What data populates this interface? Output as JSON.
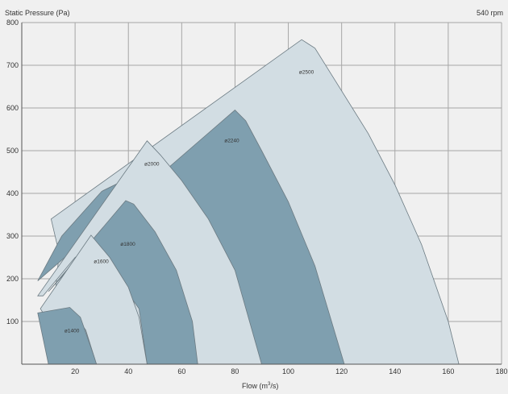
{
  "header": {
    "ylabel": "Static Pressure (Pa)",
    "speed": "540 rpm"
  },
  "chart_data": {
    "type": "area",
    "xlabel_text": "Flow (m",
    "xlabel_sup": "3",
    "xlabel_tail": "/s)",
    "xlim": [
      0,
      180
    ],
    "ylim": [
      0,
      800
    ],
    "xticks": [
      "20",
      "40",
      "60",
      "80",
      "100",
      "120",
      "140",
      "160",
      "180"
    ],
    "yticks": [
      "100",
      "200",
      "300",
      "400",
      "500",
      "600",
      "700",
      "800"
    ],
    "grid": true,
    "colors": {
      "light": "#d2dde3",
      "dark": "#7f9faf",
      "edge": "#6b7a82",
      "grid": "#a6a6a6"
    },
    "series": [
      {
        "name": "ø2500",
        "shade": "light",
        "label_at": [
          104,
          680
        ],
        "points": [
          [
            11,
            340
          ],
          [
            105,
            760
          ],
          [
            110,
            740
          ],
          [
            120,
            640
          ],
          [
            130,
            540
          ],
          [
            140,
            420
          ],
          [
            150,
            280
          ],
          [
            160,
            100
          ],
          [
            164,
            0
          ],
          [
            10,
            0
          ],
          [
            14,
            260
          ],
          [
            11,
            340
          ]
        ]
      },
      {
        "name": "ø2240",
        "shade": "dark",
        "label_at": [
          76,
          520
        ],
        "points": [
          [
            6,
            195
          ],
          [
            80,
            595
          ],
          [
            84,
            570
          ],
          [
            90,
            500
          ],
          [
            100,
            380
          ],
          [
            110,
            230
          ],
          [
            121,
            0
          ],
          [
            88,
            0
          ],
          [
            82,
            130
          ],
          [
            75,
            230
          ],
          [
            65,
            320
          ],
          [
            55,
            390
          ],
          [
            48,
            460
          ],
          [
            30,
            405
          ],
          [
            15,
            300
          ],
          [
            6,
            195
          ]
        ]
      },
      {
        "name": "ø2000",
        "shade": "light",
        "label_at": [
          46,
          465
        ],
        "points": [
          [
            6,
            160
          ],
          [
            47,
            523
          ],
          [
            52,
            490
          ],
          [
            60,
            430
          ],
          [
            70,
            340
          ],
          [
            80,
            220
          ],
          [
            90,
            0
          ],
          [
            66,
            0
          ],
          [
            62,
            100
          ],
          [
            58,
            160
          ],
          [
            48,
            250
          ],
          [
            38,
            322
          ],
          [
            20,
            250
          ],
          [
            8,
            160
          ],
          [
            6,
            160
          ]
        ]
      },
      {
        "name": "ø1800",
        "shade": "dark",
        "label_at": [
          37,
          277
        ],
        "points": [
          [
            10,
            170
          ],
          [
            39,
            383
          ],
          [
            42,
            375
          ],
          [
            50,
            310
          ],
          [
            58,
            220
          ],
          [
            64,
            100
          ],
          [
            66,
            0
          ],
          [
            47,
            0
          ],
          [
            44,
            130
          ],
          [
            36,
            200
          ],
          [
            26,
            295
          ],
          [
            15,
            205
          ],
          [
            10,
            170
          ]
        ]
      },
      {
        "name": "ø1600",
        "shade": "light",
        "label_at": [
          27,
          237
        ],
        "points": [
          [
            7,
            130
          ],
          [
            26,
            302
          ],
          [
            33,
            250
          ],
          [
            40,
            180
          ],
          [
            44,
            110
          ],
          [
            47,
            0
          ],
          [
            28,
            0
          ],
          [
            24,
            80
          ],
          [
            18,
            130
          ],
          [
            11,
            90
          ],
          [
            7,
            130
          ]
        ]
      },
      {
        "name": "ø1400",
        "shade": "dark",
        "label_at": [
          16,
          75
        ],
        "points": [
          [
            6,
            120
          ],
          [
            18,
            133
          ],
          [
            22,
            110
          ],
          [
            27,
            20
          ],
          [
            28,
            0
          ],
          [
            10,
            0
          ],
          [
            6,
            120
          ]
        ]
      }
    ]
  }
}
